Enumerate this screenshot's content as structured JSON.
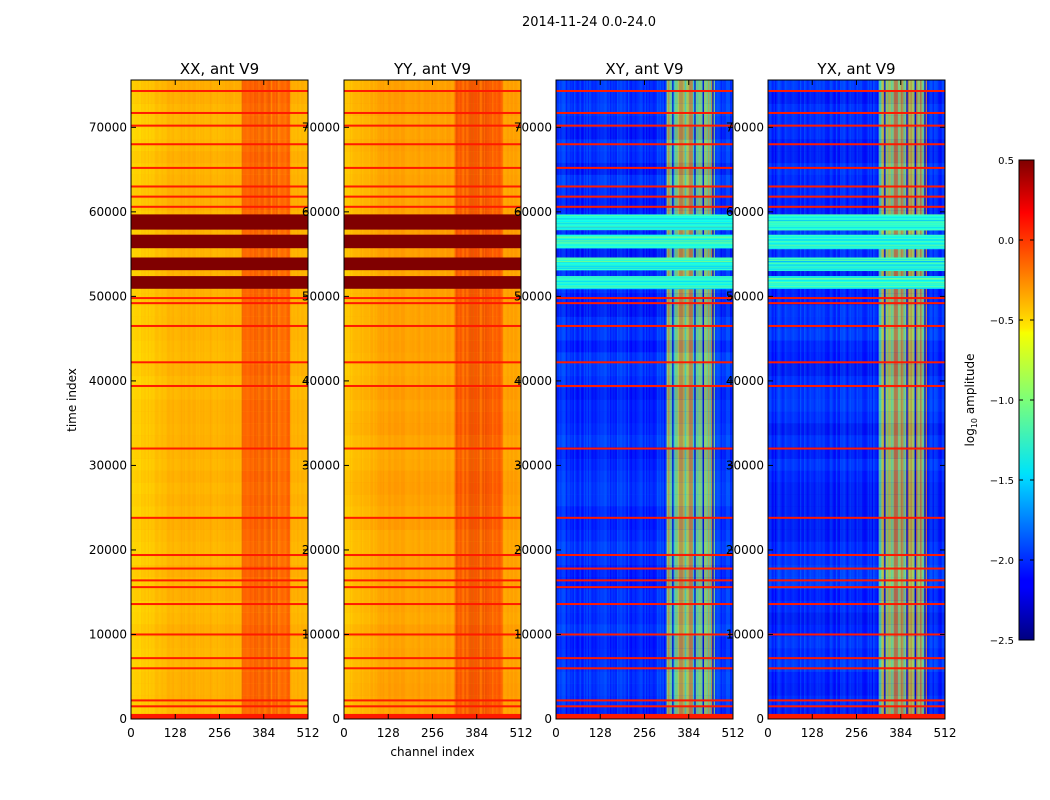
{
  "suptitle": "2014-11-24 0.0-24.0",
  "chart_data": [
    {
      "type": "heatmap",
      "title": "XX, ant V9",
      "ylabel": "time index",
      "xlabel": "",
      "xlim": [
        0,
        512
      ],
      "ylim": [
        0,
        75600
      ],
      "xticks": [
        "0",
        "128",
        "256",
        "384",
        "512"
      ],
      "yticks": [
        "0",
        "10000",
        "20000",
        "30000",
        "40000",
        "50000",
        "60000",
        "70000"
      ],
      "base_level": -0.4,
      "rfi_band_level": 0.05,
      "saturated_level": 0.5,
      "saturated_blocks": [
        [
          50900,
          52400
        ],
        [
          53100,
          54600
        ],
        [
          55700,
          57300
        ],
        [
          57900,
          59700
        ]
      ],
      "flag_rows": [
        200,
        1500,
        2200,
        6000,
        7200,
        10000,
        13600,
        15600,
        16400,
        17800,
        19400,
        23800,
        32000,
        39400,
        42200,
        46500,
        49200,
        49800,
        60600,
        61800,
        63000,
        65200,
        68000,
        70200,
        71700,
        74300
      ]
    },
    {
      "type": "heatmap",
      "title": "YY, ant V9",
      "ylabel": "",
      "xlabel": "channel index",
      "xlim": [
        0,
        512
      ],
      "ylim": [
        0,
        75600
      ],
      "xticks": [
        "0",
        "128",
        "256",
        "384",
        "512"
      ],
      "yticks": [
        "0",
        "10000",
        "20000",
        "30000",
        "40000",
        "50000",
        "60000",
        "70000"
      ],
      "base_level": -0.35,
      "rfi_band_level": 0.1,
      "saturated_level": 0.5,
      "saturated_blocks": [
        [
          50900,
          52400
        ],
        [
          53100,
          54600
        ],
        [
          55700,
          57300
        ],
        [
          57900,
          59700
        ]
      ],
      "flag_rows": [
        200,
        1500,
        2200,
        6000,
        7200,
        10000,
        13600,
        15600,
        16400,
        17800,
        19400,
        23800,
        32000,
        39400,
        42200,
        46500,
        49200,
        49800,
        60600,
        61800,
        63000,
        65200,
        68000,
        70200,
        71700,
        74300
      ]
    },
    {
      "type": "heatmap",
      "title": "XY, ant V9",
      "ylabel": "",
      "xlabel": "",
      "xlim": [
        0,
        512
      ],
      "ylim": [
        0,
        75600
      ],
      "xticks": [
        "0",
        "128",
        "256",
        "384",
        "512"
      ],
      "yticks": [
        "0",
        "10000",
        "20000",
        "30000",
        "40000",
        "50000",
        "60000",
        "70000"
      ],
      "base_level": -2.0,
      "rfi_band_level": -0.7,
      "saturated_level": -1.3,
      "saturated_blocks": [
        [
          50900,
          52400
        ],
        [
          53100,
          54600
        ],
        [
          55700,
          57300
        ],
        [
          57900,
          59700
        ]
      ],
      "flag_rows": [
        200,
        1500,
        2200,
        6000,
        7200,
        10000,
        13600,
        15600,
        16400,
        17800,
        19400,
        23800,
        32000,
        39400,
        42200,
        46500,
        49200,
        49800,
        60600,
        61800,
        63000,
        65200,
        68000,
        70200,
        71700,
        74300
      ]
    },
    {
      "type": "heatmap",
      "title": "YX, ant V9",
      "ylabel": "",
      "xlabel": "",
      "xlim": [
        0,
        512
      ],
      "ylim": [
        0,
        75600
      ],
      "xticks": [
        "0",
        "128",
        "256",
        "384",
        "512"
      ],
      "yticks": [
        "0",
        "10000",
        "20000",
        "30000",
        "40000",
        "50000",
        "60000",
        "70000"
      ],
      "base_level": -2.0,
      "rfi_band_level": -0.7,
      "saturated_level": -1.3,
      "saturated_blocks": [
        [
          50900,
          52400
        ],
        [
          53100,
          54600
        ],
        [
          55700,
          57300
        ],
        [
          57900,
          59700
        ]
      ],
      "flag_rows": [
        200,
        1500,
        2200,
        6000,
        7200,
        10000,
        13600,
        15600,
        16400,
        17800,
        19400,
        23800,
        32000,
        39400,
        42200,
        46500,
        49200,
        49800,
        60600,
        61800,
        63000,
        65200,
        68000,
        70200,
        71700,
        74300
      ]
    }
  ],
  "colorbar": {
    "label_prefix": "log",
    "label_sub": "10",
    "label_suffix": " amplitude",
    "range": [
      -2.5,
      0.5
    ],
    "ticks": [
      "0.5",
      "0.0",
      "−0.5",
      "−1.0",
      "−1.5",
      "−2.0",
      "−2.5"
    ],
    "tick_values": [
      0.5,
      0.0,
      -0.5,
      -1.0,
      -1.5,
      -2.0,
      -2.5
    ],
    "colormap": "jet"
  }
}
